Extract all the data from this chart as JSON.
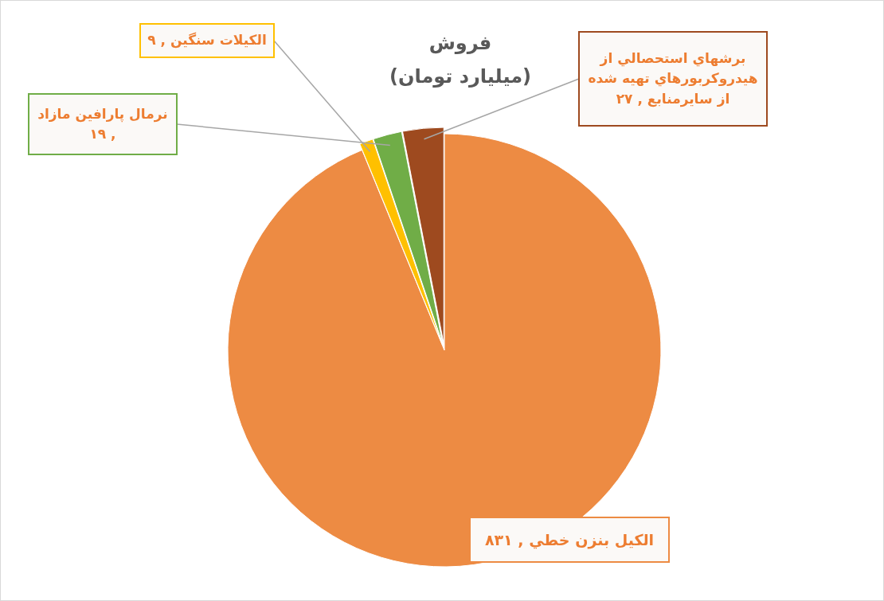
{
  "chart_data": {
    "type": "pie",
    "title": "فروش",
    "subtitle": "(ميليارد تومان)",
    "categories": [
      "الكيل بنزن خطي",
      "الكيلات سنگين",
      "نرمال پارافين مازاد",
      "برشهاي استحصالي از هيدروكربورهاي تهيه شده از سايرمنابع"
    ],
    "values": [
      831,
      9,
      19,
      27
    ],
    "value_labels": [
      ", ۸۳۱",
      ", ۹",
      ", ۱۹",
      ", ۲۷"
    ],
    "colors": [
      "#ed8b43",
      "#ffc000",
      "#70ad47",
      "#9e4a1f"
    ]
  }
}
